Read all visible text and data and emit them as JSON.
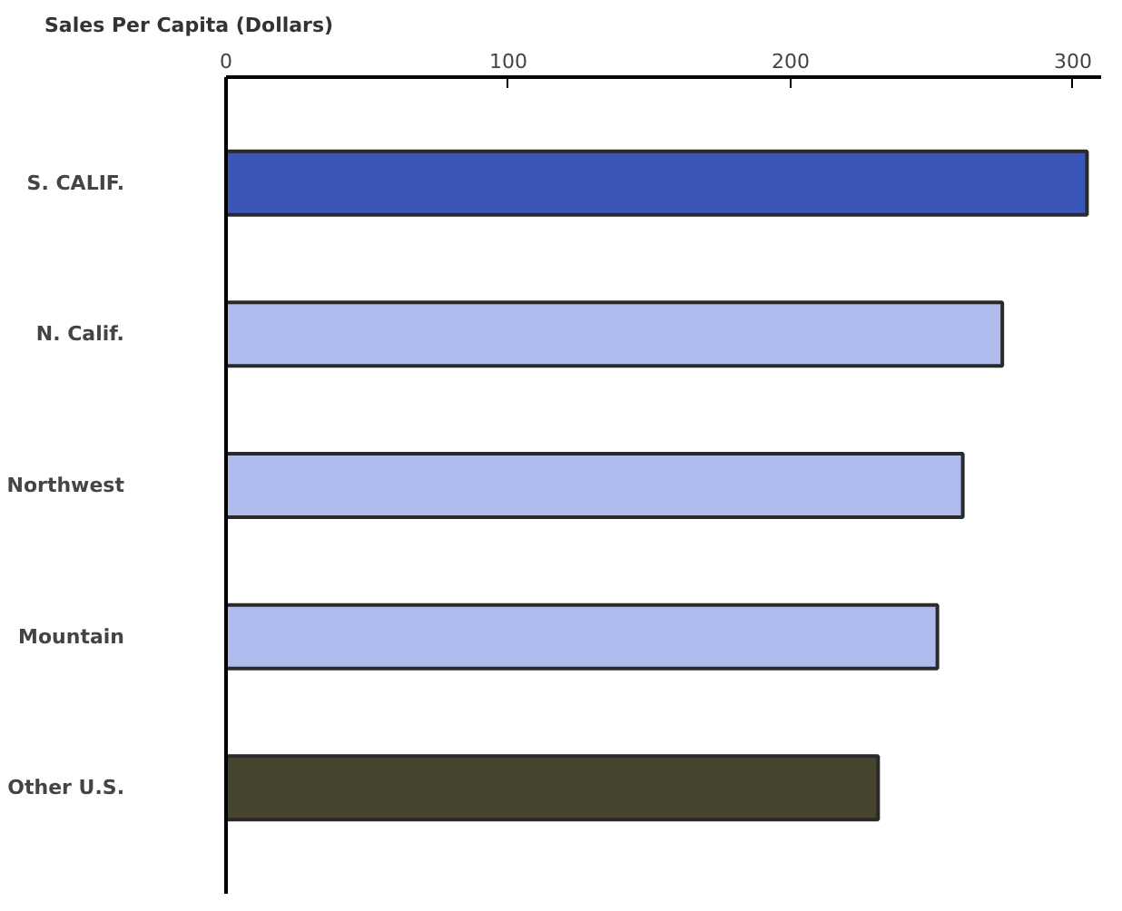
{
  "chart_data": {
    "type": "bar",
    "orientation": "horizontal",
    "xlabel": "Sales Per Capita (Dollars)",
    "categories": [
      "S. CALIF.",
      "N. Calif.",
      "Northwest",
      "Mountain",
      "Other U.S."
    ],
    "values": [
      305,
      275,
      261,
      252,
      231
    ],
    "colors": [
      "#3a56b8",
      "#aebbec",
      "#aebbec",
      "#aebbec",
      "#474430"
    ],
    "xlim": [
      0,
      310
    ],
    "xticks": [
      0,
      100,
      200,
      300
    ],
    "grid": false
  }
}
